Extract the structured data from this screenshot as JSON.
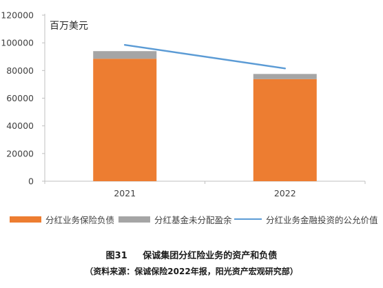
{
  "chart_data": {
    "type": "bar",
    "stacked": true,
    "unit": "百万美元",
    "categories": [
      "2021",
      "2022"
    ],
    "series": [
      {
        "name": "分红业务保险负债",
        "type": "bar",
        "color": "#ed7d31",
        "values": [
          88500,
          73800
        ]
      },
      {
        "name": "分红基金未分配盈余",
        "type": "bar",
        "color": "#a5a5a5",
        "values": [
          5500,
          3700
        ]
      },
      {
        "name": "分红业务金融投资的公允价值",
        "type": "line",
        "color": "#5b9bd5",
        "values": [
          98500,
          81500
        ]
      }
    ],
    "ylim": [
      0,
      120000
    ],
    "yticks": [
      0,
      20000,
      40000,
      60000,
      80000,
      100000,
      120000
    ],
    "ytick_labels": [
      "0",
      "20000",
      "40000",
      "60000",
      "80000",
      "100000",
      "120000"
    ],
    "legend_position": "bottom",
    "grid": false
  },
  "caption": {
    "figure_no": "图31",
    "title": "保诚集团分红险业务的资产和负债"
  },
  "source": "（资料来源：保诚保险2022年报，阳光资产宏观研究部）"
}
